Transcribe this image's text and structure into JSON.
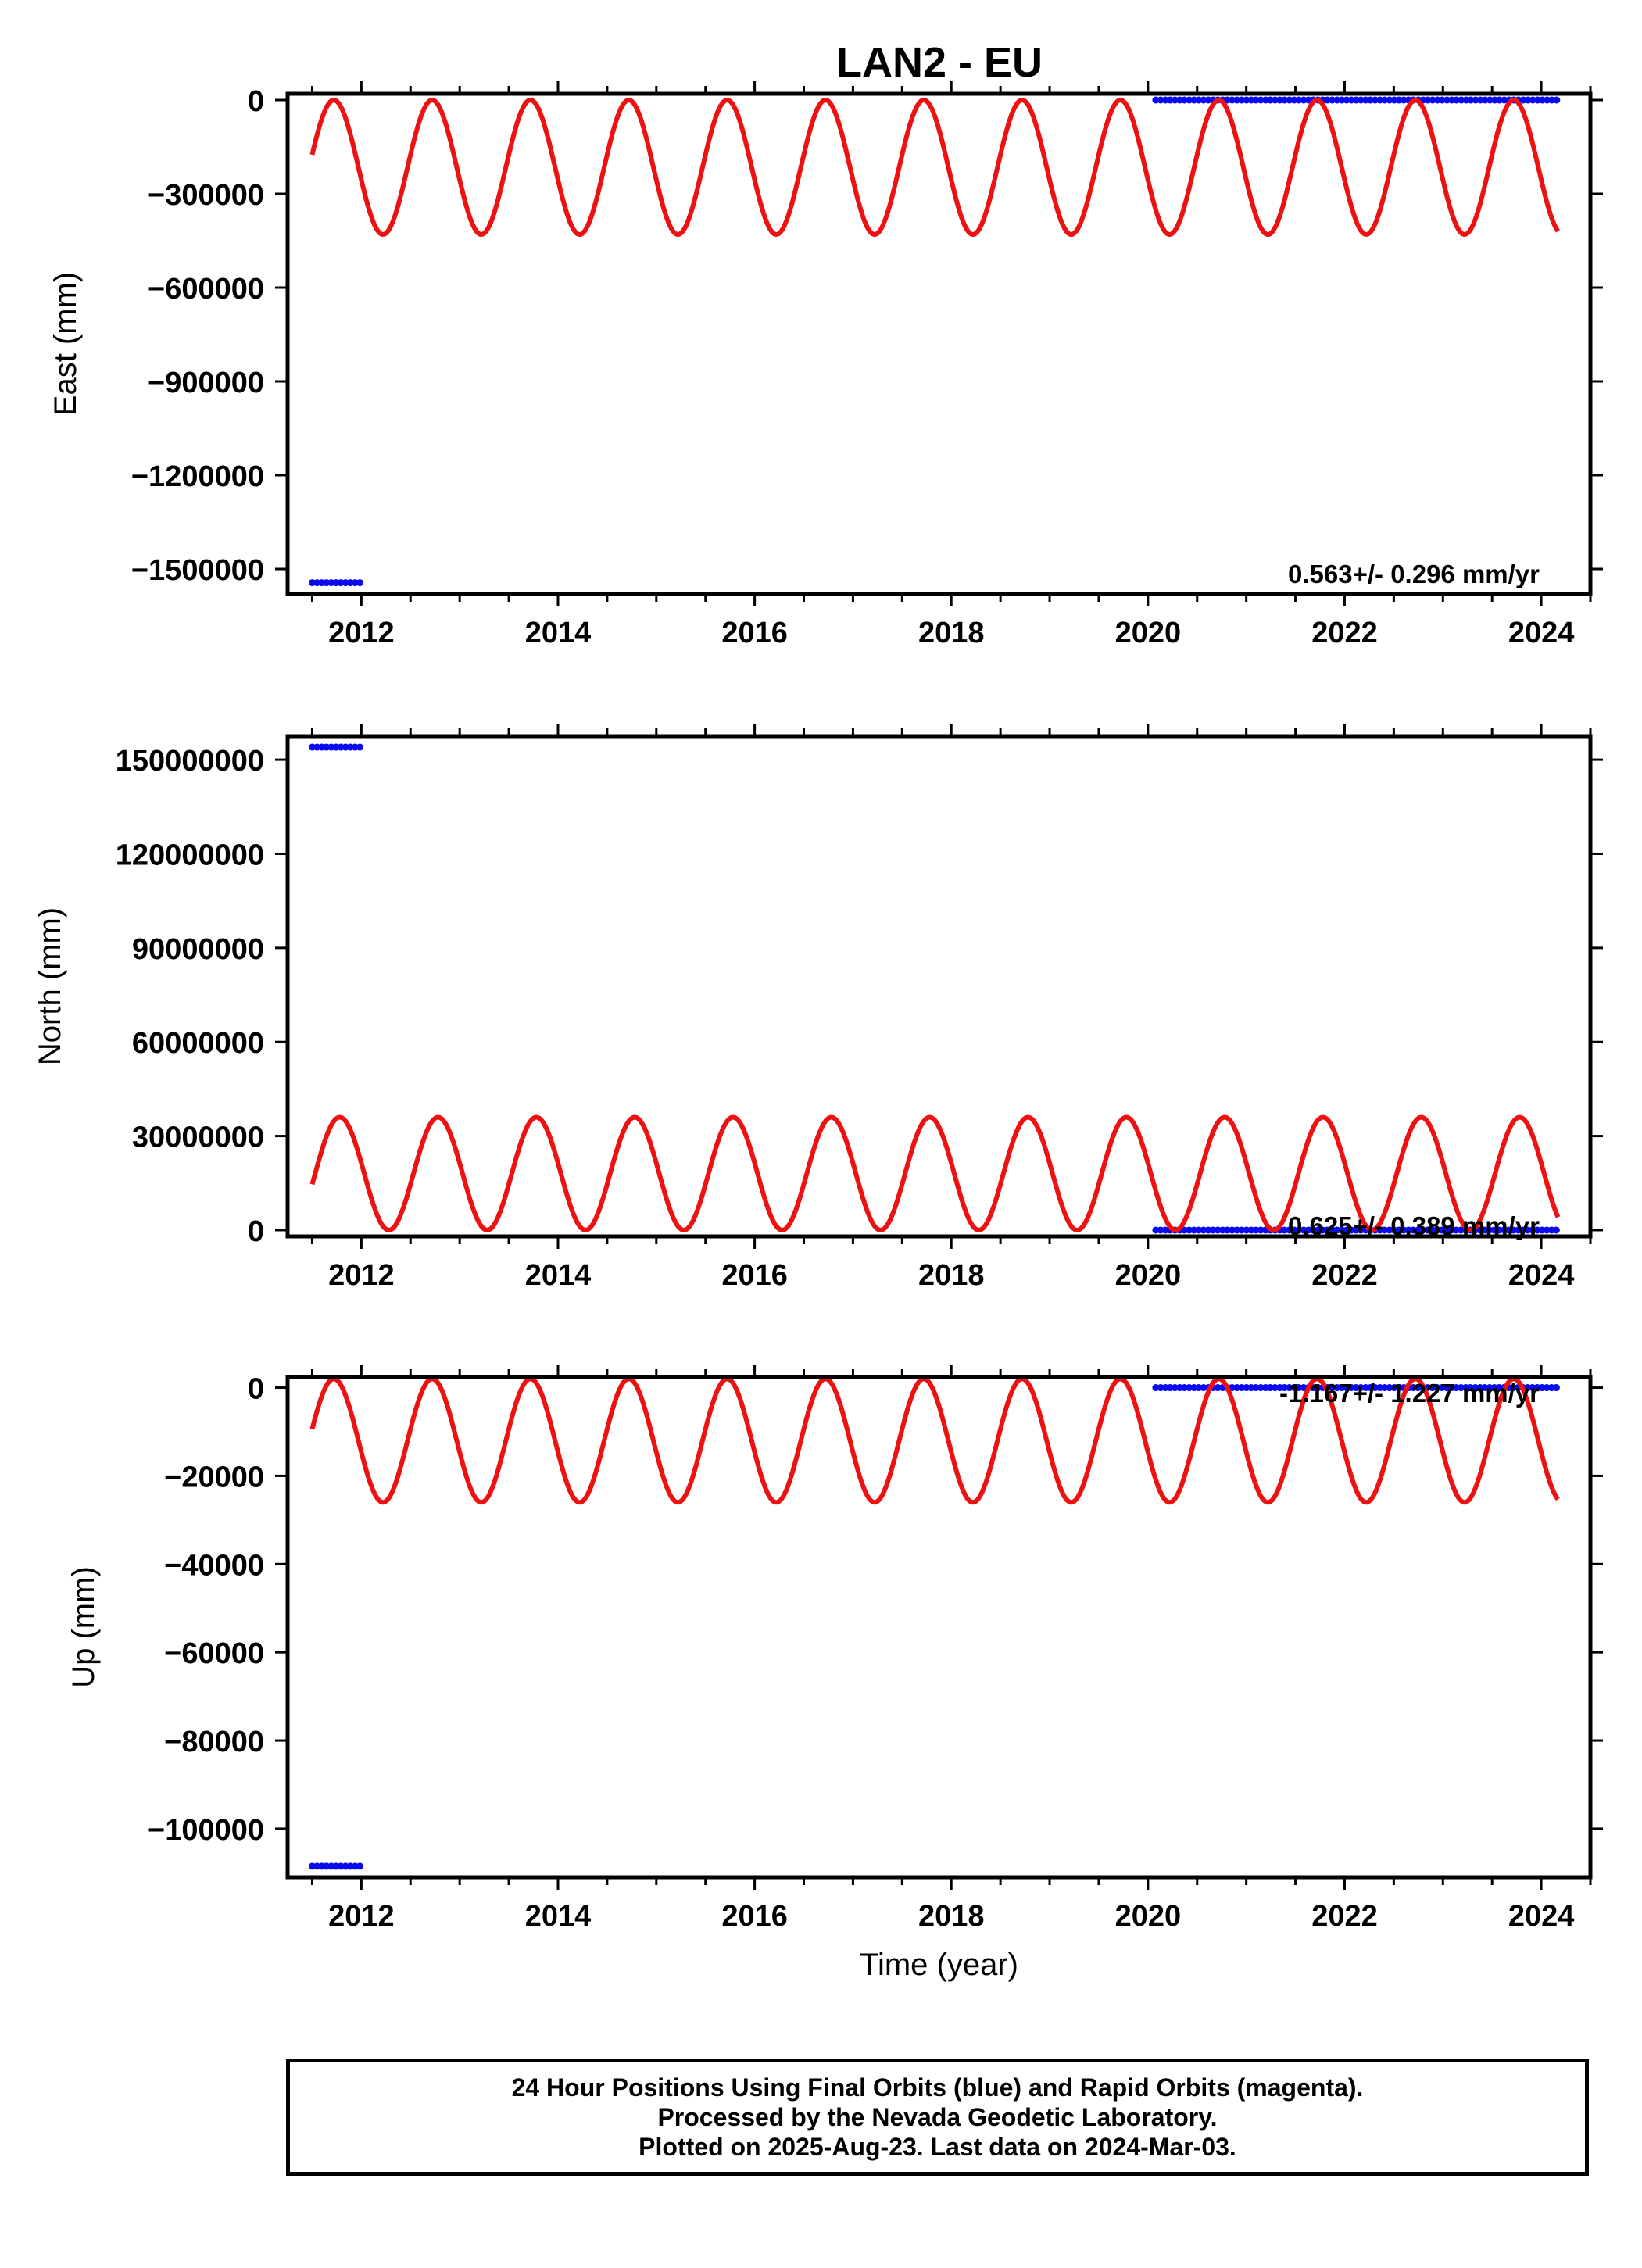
{
  "title": "LAN2 - EU",
  "colors": {
    "model": "#ee1111",
    "data": "#0a0af0",
    "axis": "#000000"
  },
  "chart_data": [
    {
      "type": "scatter",
      "panel": "east",
      "ylabel": "East (mm)",
      "xlabel": "",
      "xlim": [
        2011.25,
        2024.5
      ],
      "ylim": [
        -1580000,
        20000
      ],
      "yticks": [
        0,
        -300000,
        -600000,
        -900000,
        -1200000,
        -1500000
      ],
      "ytick_labels": [
        "0",
        "−300000",
        "−600000",
        "−900000",
        "−1200000",
        "−1500000"
      ],
      "xticks": [
        2012,
        2014,
        2016,
        2018,
        2020,
        2022,
        2024
      ],
      "xtick_labels": [
        "2012",
        "2014",
        "2016",
        "2018",
        "2020",
        "2022",
        "2024"
      ],
      "rate_text": "0.563+/- 0.296 mm/yr",
      "series": [
        {
          "kind": "points",
          "segments": [
            {
              "x_start": 2011.5,
              "x_end": 2012.0,
              "y": -1544000
            },
            {
              "x_start": 2020.08,
              "x_end": 2022.7,
              "y": 0
            },
            {
              "x_start": 2022.75,
              "x_end": 2024.17,
              "y": 0
            }
          ]
        },
        {
          "kind": "model",
          "x_start": 2011.5,
          "x_end": 2024.17,
          "mean": -215000,
          "amplitude": 215000,
          "period_years": 1.0,
          "phase_year": 2011.47
        }
      ]
    },
    {
      "type": "scatter",
      "panel": "north",
      "ylabel": "North (mm)",
      "xlabel": "",
      "xlim": [
        2011.25,
        2024.5
      ],
      "ylim": [
        -2000000,
        157500000
      ],
      "yticks": [
        0,
        30000000,
        60000000,
        90000000,
        120000000,
        150000000
      ],
      "ytick_labels": [
        "0",
        "30000000",
        "60000000",
        "90000000",
        "120000000",
        "150000000"
      ],
      "xticks": [
        2012,
        2014,
        2016,
        2018,
        2020,
        2022,
        2024
      ],
      "xtick_labels": [
        "2012",
        "2014",
        "2016",
        "2018",
        "2020",
        "2022",
        "2024"
      ],
      "rate_text": "0.625+/- 0.389 mm/yr",
      "series": [
        {
          "kind": "points",
          "segments": [
            {
              "x_start": 2011.5,
              "x_end": 2012.0,
              "y": 154000000
            },
            {
              "x_start": 2020.08,
              "x_end": 2024.17,
              "y": 0
            }
          ]
        },
        {
          "kind": "model",
          "x_start": 2011.5,
          "x_end": 2024.17,
          "mean": 18000000,
          "amplitude": 18000000,
          "period_years": 1.0,
          "phase_year": 2011.53
        }
      ]
    },
    {
      "type": "scatter",
      "panel": "up",
      "ylabel": "Up (mm)",
      "xlabel": "Time (year)",
      "xlim": [
        2011.25,
        2024.5
      ],
      "ylim": [
        -111000,
        2400
      ],
      "yticks": [
        0,
        -20000,
        -40000,
        -60000,
        -80000,
        -100000
      ],
      "ytick_labels": [
        "0",
        "−20000",
        "−40000",
        "−60000",
        "−80000",
        "−100000"
      ],
      "xticks": [
        2012,
        2014,
        2016,
        2018,
        2020,
        2022,
        2024
      ],
      "xtick_labels": [
        "2012",
        "2014",
        "2016",
        "2018",
        "2020",
        "2022",
        "2024"
      ],
      "rate_text": "-1.167+/- 1.227 mm/yr",
      "series": [
        {
          "kind": "points",
          "segments": [
            {
              "x_start": 2011.5,
              "x_end": 2012.0,
              "y": -108500
            },
            {
              "x_start": 2020.08,
              "x_end": 2024.17,
              "y": 0
            }
          ]
        },
        {
          "kind": "model",
          "x_start": 2011.5,
          "x_end": 2024.17,
          "mean": -12000,
          "amplitude": 14000,
          "period_years": 1.0,
          "phase_year": 2011.47
        }
      ]
    }
  ],
  "footer": {
    "line1": "24 Hour Positions Using Final Orbits (blue) and Rapid Orbits (magenta).",
    "line2": "Processed by the Nevada Geodetic Laboratory.",
    "line3": "Plotted on 2025-Aug-23. Last data on 2024-Mar-03."
  }
}
